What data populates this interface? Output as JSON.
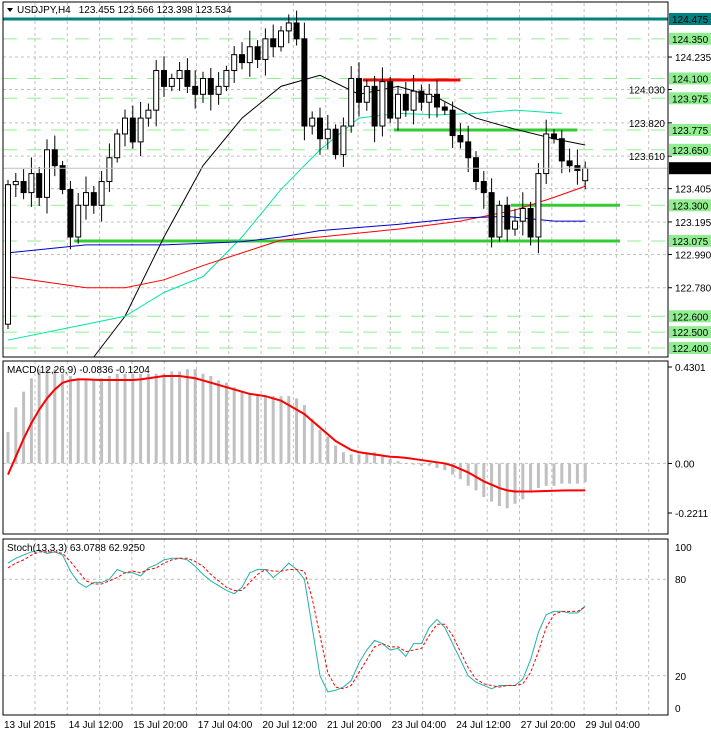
{
  "header": {
    "symbol": "USDJPY,H4",
    "ohlc": "123.455 123.566 123.398 123.534"
  },
  "colors": {
    "level_green": "#33cc33",
    "level_label_bg": "#90ee90",
    "teal": "#008080",
    "resistance_red": "#ff0000",
    "ma_black": "#000000",
    "ma_cyan": "#00e6a0",
    "ma_red": "#ff0000",
    "ma_blue": "#0000cd",
    "histogram": "#c0c0c0",
    "stoch_main": "#20b2aa",
    "stoch_signal": "#ff0000"
  },
  "chart_data": [
    {
      "type": "candlestick",
      "title": "USDJPY,H4",
      "ylim": [
        122.35,
        124.55
      ],
      "current_price": "123.534",
      "price_ticks": [
        "124.235",
        "124.030",
        "123.820",
        "123.610",
        "123.405",
        "123.195",
        "122.990",
        "122.780"
      ],
      "level_labels": [
        "124.475",
        "124.350",
        "124.100",
        "123.975",
        "123.775",
        "123.650",
        "123.300",
        "123.075",
        "122.600",
        "122.500",
        "122.400"
      ],
      "closes": [
        123.43,
        123.45,
        123.38,
        123.5,
        123.35,
        123.65,
        123.55,
        123.4,
        123.1,
        123.3,
        123.38,
        123.3,
        123.45,
        123.6,
        123.75,
        123.85,
        123.7,
        123.85,
        123.9,
        124.15,
        124.05,
        124.1,
        124.15,
        124.05,
        124.0,
        124.1,
        124.0,
        124.05,
        124.15,
        124.25,
        124.2,
        124.3,
        124.22,
        124.35,
        124.3,
        124.4,
        124.45,
        124.35,
        123.8,
        123.85,
        123.72,
        123.78,
        123.62,
        123.8,
        124.1,
        123.95,
        124.05,
        123.8,
        124.08,
        123.85,
        124.0,
        123.9,
        124.02,
        123.95,
        124.0,
        123.92,
        123.9,
        123.74,
        123.7,
        123.6,
        123.45,
        123.38,
        123.1,
        123.3,
        123.15,
        123.2,
        123.28,
        123.1,
        123.5,
        123.75,
        123.72,
        123.58,
        123.55,
        123.52,
        123.534
      ],
      "first_open": 122.55,
      "moving_averages": [
        {
          "name": "ma-black",
          "points": [
            [
              11,
              122.3
            ],
            [
              15,
              122.6
            ],
            [
              20,
              123.1
            ],
            [
              25,
              123.55
            ],
            [
              30,
              123.85
            ],
            [
              35,
              124.05
            ],
            [
              40,
              124.12
            ],
            [
              45,
              124.0
            ],
            [
              50,
              124.05
            ],
            [
              55,
              123.98
            ],
            [
              60,
              123.85
            ],
            [
              65,
              123.78
            ],
            [
              70,
              123.72
            ],
            [
              74,
              123.68
            ]
          ]
        },
        {
          "name": "ma-cyan",
          "points": [
            [
              0,
              122.45
            ],
            [
              10,
              122.55
            ],
            [
              15,
              122.6
            ],
            [
              20,
              122.75
            ],
            [
              25,
              122.85
            ],
            [
              30,
              123.1
            ],
            [
              35,
              123.4
            ],
            [
              40,
              123.65
            ],
            [
              45,
              123.85
            ],
            [
              50,
              123.88
            ],
            [
              55,
              123.87
            ],
            [
              60,
              123.88
            ],
            [
              65,
              123.9
            ],
            [
              71,
              123.88
            ]
          ]
        },
        {
          "name": "ma-red",
          "points": [
            [
              0,
              122.85
            ],
            [
              10,
              122.78
            ],
            [
              15,
              122.78
            ],
            [
              20,
              122.83
            ],
            [
              25,
              122.92
            ],
            [
              30,
              123.0
            ],
            [
              35,
              123.08
            ],
            [
              40,
              123.1
            ],
            [
              50,
              123.15
            ],
            [
              58,
              123.2
            ],
            [
              65,
              123.27
            ],
            [
              70,
              123.35
            ],
            [
              74,
              123.42
            ]
          ]
        },
        {
          "name": "ma-blue",
          "points": [
            [
              0,
              123.0
            ],
            [
              10,
              123.05
            ],
            [
              20,
              123.05
            ],
            [
              30,
              123.07
            ],
            [
              35,
              123.1
            ],
            [
              40,
              123.14
            ],
            [
              50,
              123.18
            ],
            [
              58,
              123.22
            ],
            [
              64,
              123.23
            ],
            [
              70,
              123.2
            ],
            [
              74,
              123.2
            ]
          ]
        }
      ],
      "trend_levels": [
        {
          "price": 124.09,
          "from_bar": 46,
          "to_bar": 58,
          "color": "red"
        },
        {
          "price": 123.775,
          "from_bar": 50,
          "to_bar": 73,
          "color": "green"
        },
        {
          "price": 123.3,
          "from_bar": 65,
          "to_bar": 79,
          "color": "green"
        },
        {
          "price": 123.075,
          "from_bar": 9,
          "to_bar": 79,
          "color": "green"
        }
      ]
    },
    {
      "type": "bar+line",
      "title": "MACD(12,26,9) -0.0836 -0.1204",
      "ylim": [
        -0.2211,
        0.4301
      ],
      "ticks": [
        "0.4301",
        "0.00",
        "-0.2211"
      ],
      "histogram": [
        0.14,
        0.25,
        0.32,
        0.38,
        0.42,
        0.43,
        0.42,
        0.4,
        0.39,
        0.38,
        0.37,
        0.37,
        0.38,
        0.39,
        0.4,
        0.4,
        0.4,
        0.4,
        0.4,
        0.4,
        0.4,
        0.41,
        0.41,
        0.42,
        0.42,
        0.4,
        0.39,
        0.37,
        0.36,
        0.34,
        0.32,
        0.31,
        0.31,
        0.3,
        0.3,
        0.3,
        0.3,
        0.29,
        0.26,
        0.2,
        0.15,
        0.12,
        0.08,
        0.05,
        0.04,
        0.04,
        0.05,
        0.05,
        0.03,
        0.02,
        0.01,
        0.0,
        -0.005,
        -0.01,
        -0.01,
        -0.02,
        -0.03,
        -0.05,
        -0.07,
        -0.1,
        -0.12,
        -0.15,
        -0.17,
        -0.19,
        -0.2,
        -0.18,
        -0.16,
        -0.13,
        -0.11,
        -0.1,
        -0.1,
        -0.09,
        -0.09,
        -0.09,
        -0.084
      ],
      "signal": [
        -0.05,
        0.03,
        0.11,
        0.18,
        0.24,
        0.29,
        0.33,
        0.36,
        0.37,
        0.375,
        0.375,
        0.373,
        0.372,
        0.372,
        0.372,
        0.372,
        0.372,
        0.375,
        0.38,
        0.385,
        0.39,
        0.39,
        0.39,
        0.385,
        0.38,
        0.37,
        0.36,
        0.35,
        0.34,
        0.33,
        0.32,
        0.31,
        0.305,
        0.3,
        0.29,
        0.28,
        0.26,
        0.24,
        0.22,
        0.19,
        0.16,
        0.13,
        0.1,
        0.08,
        0.06,
        0.05,
        0.045,
        0.04,
        0.035,
        0.03,
        0.028,
        0.025,
        0.02,
        0.015,
        0.01,
        0.005,
        0.0,
        -0.01,
        -0.025,
        -0.04,
        -0.06,
        -0.08,
        -0.095,
        -0.11,
        -0.12,
        -0.125,
        -0.125,
        -0.125,
        -0.124,
        -0.123,
        -0.122,
        -0.121,
        -0.12,
        -0.12,
        -0.1204
      ]
    },
    {
      "type": "line",
      "title": "Stoch(13,3,3) 63.0788 62.9250",
      "ylim": [
        0,
        100
      ],
      "ticks": [
        "100",
        "80",
        "20",
        "0"
      ],
      "main": [
        90,
        93,
        95,
        97,
        98,
        96,
        97,
        95,
        85,
        78,
        75,
        78,
        78,
        80,
        86,
        84,
        84,
        82,
        87,
        89,
        92,
        93,
        93,
        92,
        88,
        83,
        79,
        76,
        73,
        71,
        75,
        84,
        86,
        86,
        81,
        85,
        90,
        86,
        80,
        50,
        20,
        10,
        11,
        13,
        17,
        28,
        36,
        42,
        40,
        36,
        37,
        32,
        40,
        40,
        50,
        55,
        50,
        40,
        30,
        20,
        16,
        14,
        12,
        14,
        14,
        14,
        18,
        30,
        47,
        58,
        60,
        60,
        59,
        59,
        63.08
      ],
      "signal": [
        87,
        90,
        92,
        95,
        97,
        97,
        97,
        96,
        91,
        85,
        79,
        77,
        77,
        79,
        81,
        84,
        85,
        84,
        86,
        87,
        90,
        92,
        93,
        93,
        91,
        88,
        83,
        79,
        75,
        73,
        73,
        78,
        83,
        86,
        85,
        85,
        86,
        86,
        85,
        68,
        45,
        22,
        13,
        12,
        14,
        22,
        30,
        38,
        40,
        38,
        38,
        35,
        36,
        37,
        45,
        52,
        52,
        45,
        35,
        25,
        18,
        15,
        14,
        13,
        14,
        14,
        15,
        22,
        35,
        50,
        58,
        60,
        60,
        60,
        62.93
      ]
    }
  ],
  "time_axis": [
    "13 Jul 2015",
    "14 Jul 12:00",
    "15 Jul 20:00",
    "17 Jul 04:00",
    "20 Jul 12:00",
    "21 Jul 20:00",
    "23 Jul 04:00",
    "24 Jul 12:00",
    "27 Jul 20:00",
    "29 Jul 04:00"
  ]
}
